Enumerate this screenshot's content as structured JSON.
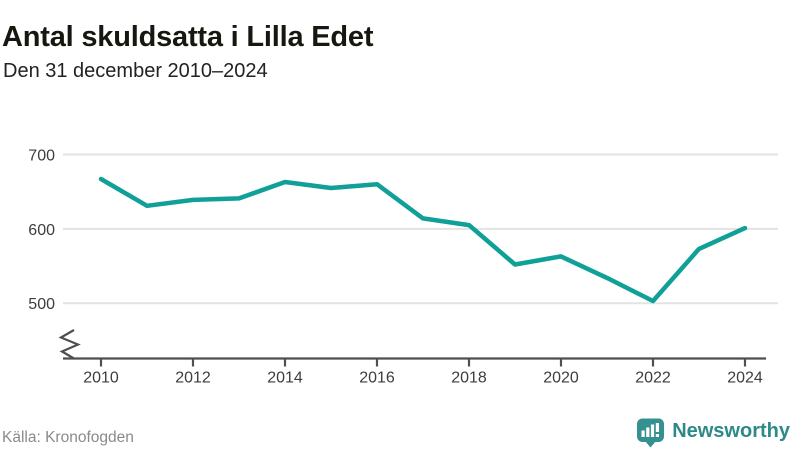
{
  "header": {
    "title": "Antal skuldsatta i Lilla Edet",
    "subtitle": "Den 31 december 2010–2024"
  },
  "footer": {
    "source": "Källa: Kronofogden",
    "logo_text": "Newsworthy"
  },
  "colors": {
    "line": "#10a098",
    "grid": "#e3e3e3",
    "axis": "#4f4f4f",
    "tick_text": "#3d3d3d",
    "logo": "#35918f"
  },
  "chart_data": {
    "type": "line",
    "title": "Antal skuldsatta i Lilla Edet",
    "subtitle": "Den 31 december 2010–2024",
    "x": [
      2010,
      2011,
      2012,
      2013,
      2014,
      2015,
      2016,
      2017,
      2018,
      2019,
      2020,
      2021,
      2022,
      2023,
      2024
    ],
    "values": [
      667,
      631,
      639,
      641,
      663,
      655,
      660,
      614,
      605,
      552,
      563,
      534,
      503,
      573,
      601
    ],
    "series_name": "Antal skuldsatta",
    "xticks": [
      2010,
      2012,
      2014,
      2016,
      2018,
      2020,
      2022,
      2024
    ],
    "yticks": [
      500,
      600,
      700
    ],
    "ylim": [
      500,
      700
    ],
    "axis_break": true,
    "grid": "horizontal",
    "legend": "none",
    "source": "Kronofogden"
  }
}
